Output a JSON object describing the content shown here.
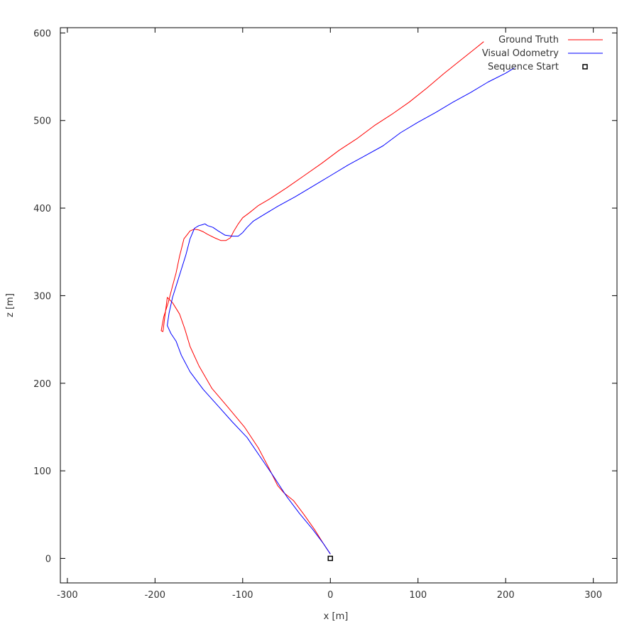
{
  "chart_data": {
    "type": "line",
    "title": "",
    "xlabel": "x [m]",
    "ylabel": "z [m]",
    "xlim": [
      -308,
      327
    ],
    "ylim": [
      -28,
      606
    ],
    "xticks": [
      -300,
      -200,
      -100,
      0,
      100,
      200,
      300
    ],
    "yticks": [
      0,
      100,
      200,
      300,
      400,
      500,
      600
    ],
    "grid": false,
    "legend": "top-right",
    "series": [
      {
        "name": "Ground Truth",
        "color": "#ff0000",
        "x": [
          0,
          -8,
          -18,
          -30,
          -42,
          -53,
          -60,
          -70,
          -82,
          -98,
          -118,
          -135,
          -150,
          -160,
          -166,
          -172,
          -180,
          -186,
          -191,
          -193,
          -190,
          -185,
          -180,
          -176,
          -172,
          -167,
          -163,
          -160,
          -155,
          -150,
          -145,
          -140,
          -132,
          -125,
          -119,
          -114,
          -110,
          -105,
          -100,
          -92,
          -82,
          -70,
          -50,
          -30,
          -10,
          10,
          30,
          50,
          70,
          90,
          110,
          130,
          150,
          165,
          175
        ],
        "y": [
          5,
          17,
          33,
          50,
          66,
          75,
          83,
          103,
          126,
          150,
          174,
          194,
          220,
          242,
          262,
          279,
          292,
          298,
          259,
          260,
          276,
          292,
          311,
          326,
          345,
          365,
          370,
          374,
          376,
          375,
          373,
          370,
          366,
          363,
          363,
          366,
          374,
          382,
          389,
          395,
          403,
          410,
          423,
          437,
          451,
          466,
          479,
          494,
          507,
          521,
          537,
          554,
          570,
          582,
          590
        ]
      },
      {
        "name": "Visual Odometry",
        "color": "#0000ff",
        "x": [
          0,
          -8,
          -20,
          -35,
          -50,
          -65,
          -80,
          -95,
          -112,
          -128,
          -145,
          -160,
          -170,
          -176,
          -182,
          -186,
          -184,
          -180,
          -175,
          -170,
          -165,
          -160,
          -155,
          -150,
          -146,
          -143,
          -140,
          -134,
          -128,
          -120,
          -112,
          -105,
          -100,
          -95,
          -88,
          -75,
          -60,
          -40,
          -20,
          0,
          20,
          40,
          60,
          80,
          100,
          120,
          140,
          160,
          180,
          200,
          210
        ],
        "y": [
          5,
          17,
          33,
          51,
          71,
          94,
          116,
          138,
          156,
          174,
          193,
          213,
          232,
          248,
          257,
          266,
          280,
          298,
          314,
          330,
          346,
          365,
          377,
          380,
          381,
          382,
          380,
          378,
          374,
          369,
          368,
          368,
          372,
          378,
          385,
          393,
          402,
          413,
          425,
          437,
          449,
          460,
          471,
          486,
          498,
          509,
          521,
          532,
          544,
          554,
          560
        ]
      },
      {
        "name": "Sequence Start",
        "marker": "square",
        "x": [
          0
        ],
        "y": [
          0
        ]
      }
    ]
  }
}
